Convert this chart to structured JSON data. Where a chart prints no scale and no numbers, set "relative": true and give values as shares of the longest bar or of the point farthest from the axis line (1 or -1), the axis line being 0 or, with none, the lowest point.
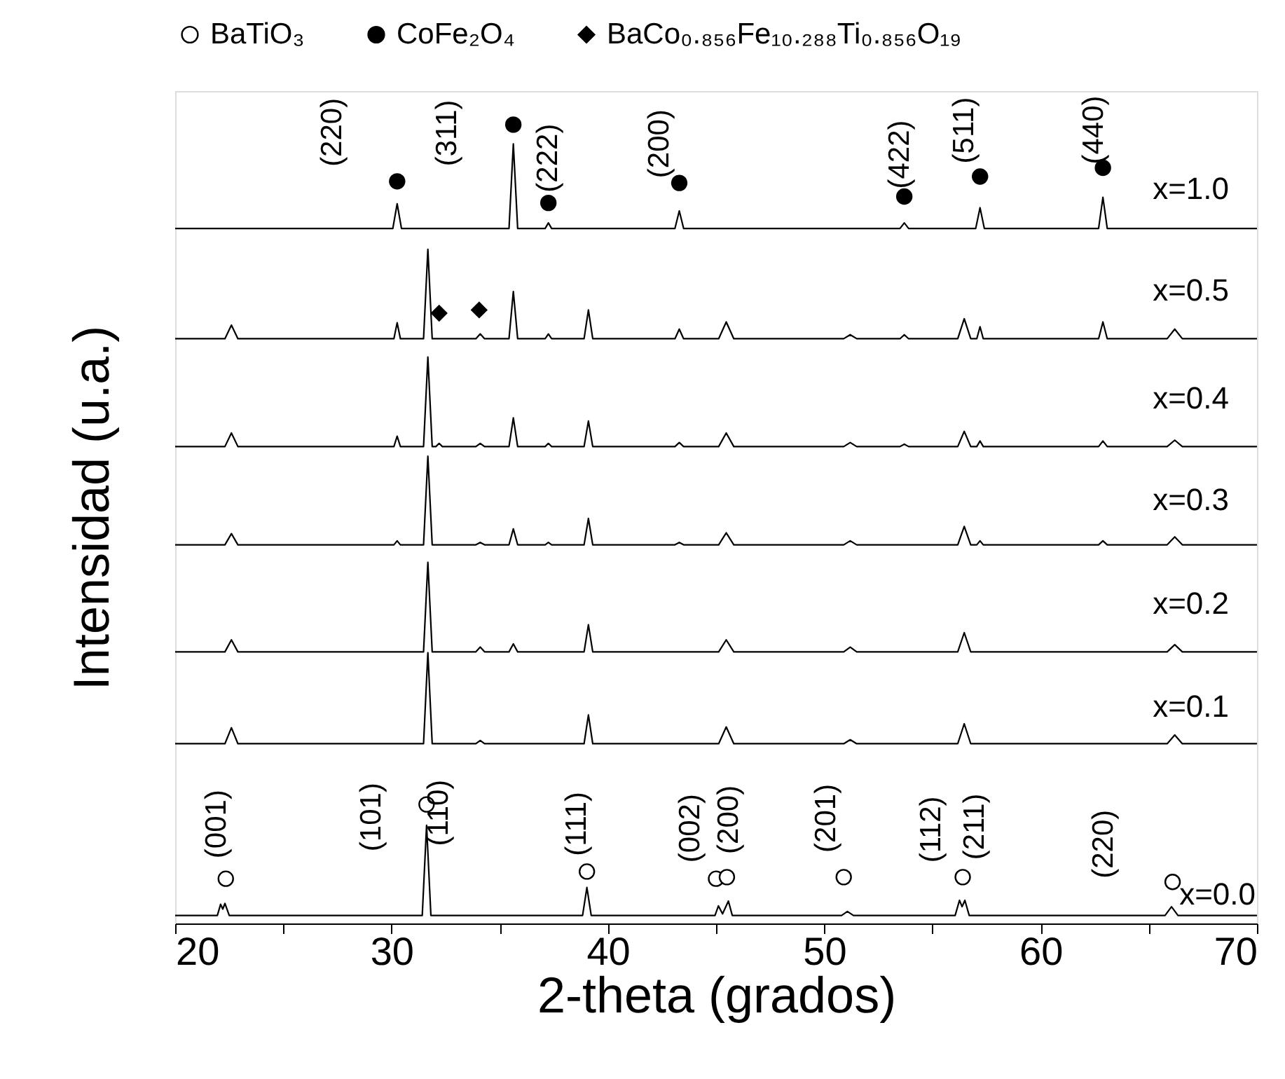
{
  "chart_data": {
    "type": "line",
    "relative": true,
    "xlim": [
      20,
      70
    ],
    "xlabel": "2-theta (grados)",
    "ylabel": "Intensidad (u.a.)",
    "legend": "top",
    "tick_labels": "x",
    "xticks": [
      20,
      {
        "value": 25,
        "label": null
      },
      30,
      {
        "value": 35,
        "label": null
      },
      40,
      {
        "value": 45,
        "label": null
      },
      50,
      {
        "value": 55,
        "label": null
      },
      60,
      {
        "value": 65,
        "label": null
      },
      70
    ],
    "series": [
      {
        "name": "x=1.0",
        "color": "#000000",
        "x": [
          20,
          30.06,
          30.26,
          30.46,
          35.43,
          35.63,
          35.83,
          37.1,
          37.25,
          37.4,
          43.1,
          43.3,
          43.5,
          53.5,
          53.7,
          53.9,
          57.0,
          57.2,
          57.4,
          62.68,
          62.88,
          63.08,
          70
        ],
        "values": [
          0.87,
          0.87,
          0.901,
          0.87,
          0.87,
          0.976,
          0.87,
          0.87,
          0.877,
          0.87,
          0.87,
          0.892,
          0.87,
          0.87,
          0.877,
          0.87,
          0.87,
          0.896,
          0.87,
          0.87,
          0.909,
          0.87,
          0.87
        ]
      },
      {
        "name": "x=0.5",
        "color": "#000000",
        "x": [
          20,
          22.3,
          22.6,
          22.9,
          30.11,
          30.26,
          30.41,
          31.48,
          31.68,
          31.88,
          33.9,
          34.1,
          34.3,
          35.43,
          35.63,
          35.83,
          37.1,
          37.25,
          37.4,
          38.9,
          39.1,
          39.3,
          43.1,
          43.3,
          43.5,
          45.12,
          45.47,
          45.82,
          50.9,
          51.2,
          51.5,
          53.5,
          53.7,
          53.9,
          56.17,
          56.47,
          56.77,
          57.05,
          57.2,
          57.35,
          62.68,
          62.88,
          63.08,
          65.85,
          66.2,
          66.55,
          70
        ],
        "values": [
          0.732,
          0.732,
          0.749,
          0.732,
          0.732,
          0.752,
          0.732,
          0.732,
          0.844,
          0.732,
          0.732,
          0.738,
          0.732,
          0.732,
          0.791,
          0.732,
          0.732,
          0.738,
          0.732,
          0.732,
          0.768,
          0.732,
          0.732,
          0.744,
          0.732,
          0.732,
          0.753,
          0.732,
          0.732,
          0.737,
          0.732,
          0.732,
          0.737,
          0.732,
          0.732,
          0.757,
          0.732,
          0.732,
          0.747,
          0.732,
          0.732,
          0.753,
          0.732,
          0.732,
          0.744,
          0.732,
          0.732
        ]
      },
      {
        "name": "x=0.4",
        "color": "#000000",
        "x": [
          20,
          22.3,
          22.6,
          22.9,
          30.11,
          30.26,
          30.41,
          31.48,
          31.68,
          31.88,
          32.05,
          32.2,
          32.35,
          33.9,
          34.1,
          34.3,
          35.43,
          35.63,
          35.83,
          37.1,
          37.25,
          37.4,
          38.9,
          39.1,
          39.3,
          43.1,
          43.3,
          43.5,
          45.12,
          45.47,
          45.82,
          50.9,
          51.2,
          51.5,
          53.5,
          53.7,
          53.9,
          56.17,
          56.47,
          56.77,
          57.05,
          57.2,
          57.35,
          62.68,
          62.88,
          63.08,
          65.85,
          66.2,
          66.55,
          70
        ],
        "values": [
          0.597,
          0.597,
          0.614,
          0.597,
          0.597,
          0.61,
          0.597,
          0.597,
          0.709,
          0.597,
          0.597,
          0.601,
          0.597,
          0.597,
          0.601,
          0.597,
          0.597,
          0.633,
          0.597,
          0.597,
          0.601,
          0.597,
          0.597,
          0.629,
          0.597,
          0.597,
          0.602,
          0.597,
          0.597,
          0.614,
          0.597,
          0.597,
          0.602,
          0.597,
          0.597,
          0.6,
          0.597,
          0.597,
          0.616,
          0.597,
          0.597,
          0.604,
          0.597,
          0.597,
          0.604,
          0.597,
          0.597,
          0.605,
          0.597,
          0.597
        ]
      },
      {
        "name": "x=0.3",
        "color": "#000000",
        "x": [
          20,
          22.3,
          22.6,
          22.9,
          30.11,
          30.26,
          30.41,
          31.48,
          31.68,
          31.88,
          33.9,
          34.1,
          34.3,
          35.43,
          35.63,
          35.83,
          37.1,
          37.25,
          37.4,
          38.9,
          39.1,
          39.3,
          43.1,
          43.3,
          43.5,
          45.12,
          45.47,
          45.82,
          50.9,
          51.2,
          51.5,
          56.17,
          56.47,
          56.77,
          57.05,
          57.2,
          57.35,
          62.68,
          62.88,
          63.08,
          65.85,
          66.2,
          66.55,
          70
        ],
        "values": [
          0.474,
          0.474,
          0.488,
          0.474,
          0.474,
          0.479,
          0.474,
          0.474,
          0.585,
          0.474,
          0.474,
          0.477,
          0.474,
          0.474,
          0.494,
          0.474,
          0.474,
          0.477,
          0.474,
          0.474,
          0.507,
          0.474,
          0.474,
          0.477,
          0.474,
          0.474,
          0.489,
          0.474,
          0.474,
          0.479,
          0.474,
          0.474,
          0.497,
          0.474,
          0.474,
          0.479,
          0.474,
          0.474,
          0.479,
          0.474,
          0.474,
          0.484,
          0.474,
          0.474
        ]
      },
      {
        "name": "x=0.2",
        "color": "#000000",
        "x": [
          20,
          22.3,
          22.6,
          22.9,
          31.48,
          31.68,
          31.88,
          33.9,
          34.1,
          34.3,
          35.43,
          35.63,
          35.83,
          38.9,
          39.1,
          39.3,
          45.12,
          45.47,
          45.82,
          50.9,
          51.2,
          51.5,
          56.17,
          56.47,
          56.77,
          65.85,
          66.2,
          66.55,
          70
        ],
        "values": [
          0.34,
          0.34,
          0.355,
          0.34,
          0.34,
          0.452,
          0.34,
          0.34,
          0.346,
          0.34,
          0.34,
          0.35,
          0.34,
          0.34,
          0.374,
          0.34,
          0.34,
          0.355,
          0.34,
          0.34,
          0.346,
          0.34,
          0.34,
          0.364,
          0.34,
          0.34,
          0.349,
          0.34,
          0.34
        ]
      },
      {
        "name": "x=0.1",
        "color": "#000000",
        "x": [
          20,
          22.3,
          22.6,
          22.9,
          31.48,
          31.68,
          31.88,
          33.9,
          34.1,
          34.3,
          38.9,
          39.1,
          39.3,
          45.12,
          45.47,
          45.82,
          50.9,
          51.2,
          51.5,
          56.17,
          56.47,
          56.77,
          65.85,
          66.2,
          66.55,
          70
        ],
        "values": [
          0.225,
          0.225,
          0.245,
          0.225,
          0.225,
          0.339,
          0.225,
          0.225,
          0.229,
          0.225,
          0.225,
          0.261,
          0.225,
          0.225,
          0.246,
          0.225,
          0.225,
          0.23,
          0.225,
          0.225,
          0.25,
          0.225,
          0.225,
          0.236,
          0.225,
          0.225
        ]
      },
      {
        "name": "x=0.0",
        "color": "#000000",
        "x": [
          20,
          21.95,
          22.1,
          22.2,
          22.3,
          22.5,
          31.42,
          31.62,
          31.82,
          38.83,
          39.03,
          39.23,
          44.95,
          45.11,
          45.3,
          45.57,
          45.75,
          50.8,
          51.07,
          51.35,
          56.05,
          56.25,
          56.37,
          56.5,
          56.7,
          65.75,
          66.05,
          66.35,
          70
        ],
        "values": [
          0.01,
          0.01,
          0.024,
          0.018,
          0.025,
          0.01,
          0.01,
          0.123,
          0.01,
          0.01,
          0.045,
          0.01,
          0.01,
          0.022,
          0.012,
          0.028,
          0.01,
          0.01,
          0.015,
          0.01,
          0.01,
          0.029,
          0.021,
          0.029,
          0.01,
          0.01,
          0.021,
          0.01,
          0.01
        ]
      },
      {
        "type": "scatter",
        "name": "BaTiO₃",
        "marker": "circle",
        "color": "#ffffff",
        "x": [
          22.34,
          31.62,
          39.03,
          45.0,
          45.5,
          50.9,
          56.4,
          66.1
        ],
        "values": [
          0.056,
          0.149,
          0.065,
          0.056,
          0.058,
          0.058,
          0.058,
          0.052
        ]
      },
      {
        "type": "scatter",
        "name": "CoFe₂O₄",
        "marker": "circle",
        "color": "#000000",
        "x": [
          30.26,
          35.63,
          37.25,
          43.3,
          53.7,
          57.2,
          62.88
        ],
        "values": [
          0.929,
          1.0,
          0.902,
          0.927,
          0.91,
          0.935,
          0.946
        ]
      },
      {
        "type": "scatter",
        "name": "BaCo₀.₈₅₆Fe₁₀.₂₈₈Ti₀.₈₅₆O₁₉",
        "marker": "diamond",
        "color": "#000000",
        "x": [
          32.2,
          34.05
        ],
        "values": [
          0.764,
          0.768
        ]
      }
    ],
    "annotations": [
      {
        "text": "(220)",
        "x": 30.26,
        "y": 0.929
      },
      {
        "text": "(311)",
        "x": 35.63,
        "y": 1.0
      },
      {
        "text": "(222)",
        "x": 37.25,
        "y": 0.902
      },
      {
        "text": "(200)",
        "x": 43.3,
        "y": 0.927
      },
      {
        "text": "(422)",
        "x": 53.7,
        "y": 0.91
      },
      {
        "text": "(511)",
        "x": 57.2,
        "y": 0.935
      },
      {
        "text": "(440)",
        "x": 62.88,
        "y": 0.946
      },
      {
        "text": "(001)",
        "x": 22.34,
        "y": 0.056
      },
      {
        "text": "(101)",
        "x": 31.62,
        "y": 0.149
      },
      {
        "text": "(110)",
        "x": 31.62,
        "y": 0.149
      },
      {
        "text": "(111)",
        "x": 39.03,
        "y": 0.065
      },
      {
        "text": "(002)",
        "x": 45.0,
        "y": 0.056
      },
      {
        "text": "(200)",
        "x": 45.5,
        "y": 0.058
      },
      {
        "text": "(201)",
        "x": 50.9,
        "y": 0.058
      },
      {
        "text": "(112)",
        "x": 56.4,
        "y": 0.058
      },
      {
        "text": "(211)",
        "x": 56.4,
        "y": 0.058
      },
      {
        "text": "(220)",
        "x": 66.1,
        "y": 0.052
      }
    ]
  }
}
